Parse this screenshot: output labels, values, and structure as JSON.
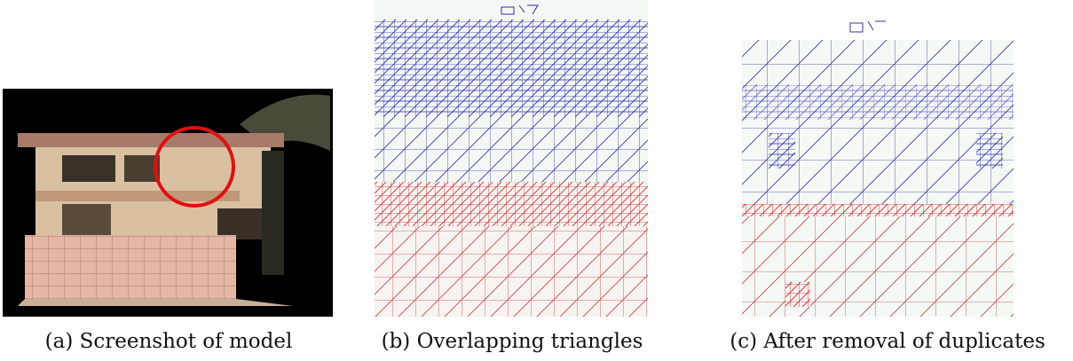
{
  "figure": {
    "panels": [
      {
        "caption": "(a) Screenshot of model"
      },
      {
        "caption": "(b) Overlapping triangles"
      },
      {
        "caption": "(c) After removal of duplicates"
      }
    ]
  }
}
